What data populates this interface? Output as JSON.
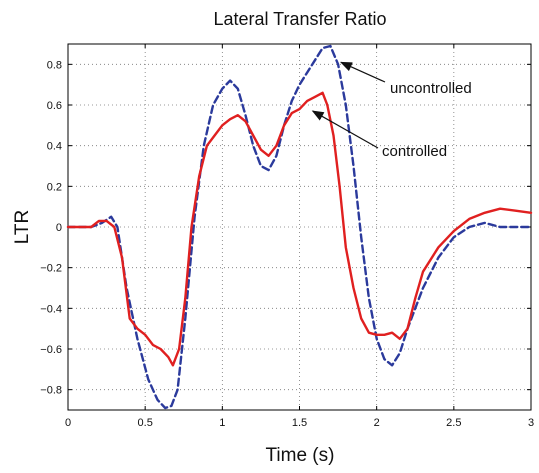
{
  "chart_data": {
    "type": "line",
    "title": "Lateral Transfer Ratio",
    "xlabel": "Time (s)",
    "ylabel": "LTR",
    "xlim": [
      0,
      3
    ],
    "ylim": [
      -0.9,
      0.9
    ],
    "grid": true,
    "x_ticks": [
      0,
      0.5,
      1,
      1.5,
      2,
      2.5,
      3
    ],
    "x_tick_labels": [
      "0",
      "0.5",
      "1",
      "1.5",
      "2",
      "2.5",
      "3"
    ],
    "y_ticks": [
      0.8,
      0.6,
      0.4,
      0.2,
      0,
      -0.2,
      -0.4,
      -0.6,
      -0.8
    ],
    "y_tick_labels": [
      "0.8",
      "0.6",
      "0.4",
      "0.2",
      "0",
      "−0.2",
      "−0.4",
      "−0.6",
      "−0.8"
    ],
    "series": [
      {
        "name": "uncontrolled",
        "color": "#2b3a9c",
        "style": "dashed",
        "x": [
          0,
          0.15,
          0.22,
          0.28,
          0.32,
          0.38,
          0.45,
          0.52,
          0.58,
          0.63,
          0.67,
          0.71,
          0.76,
          0.82,
          0.88,
          0.94,
          1.0,
          1.05,
          1.1,
          1.15,
          1.2,
          1.25,
          1.3,
          1.35,
          1.4,
          1.45,
          1.5,
          1.55,
          1.6,
          1.65,
          1.7,
          1.75,
          1.8,
          1.85,
          1.9,
          1.95,
          2.0,
          2.05,
          2.1,
          2.15,
          2.2,
          2.3,
          2.4,
          2.5,
          2.6,
          2.7,
          2.8,
          2.9,
          3.0
        ],
        "y": [
          0,
          0.0,
          0.02,
          0.05,
          0.0,
          -0.3,
          -0.55,
          -0.75,
          -0.85,
          -0.89,
          -0.88,
          -0.8,
          -0.45,
          0.05,
          0.4,
          0.6,
          0.68,
          0.72,
          0.68,
          0.55,
          0.4,
          0.3,
          0.28,
          0.35,
          0.5,
          0.62,
          0.7,
          0.76,
          0.82,
          0.88,
          0.89,
          0.8,
          0.6,
          0.3,
          -0.05,
          -0.35,
          -0.55,
          -0.65,
          -0.68,
          -0.62,
          -0.5,
          -0.3,
          -0.15,
          -0.05,
          0.0,
          0.02,
          0.0,
          0.0,
          0.0
        ]
      },
      {
        "name": "controlled",
        "color": "#e02020",
        "style": "solid",
        "x": [
          0,
          0.15,
          0.2,
          0.25,
          0.3,
          0.35,
          0.4,
          0.45,
          0.5,
          0.55,
          0.6,
          0.65,
          0.68,
          0.72,
          0.76,
          0.8,
          0.85,
          0.9,
          0.95,
          1.0,
          1.05,
          1.1,
          1.15,
          1.2,
          1.25,
          1.3,
          1.35,
          1.4,
          1.45,
          1.5,
          1.55,
          1.6,
          1.65,
          1.68,
          1.72,
          1.76,
          1.8,
          1.85,
          1.9,
          1.95,
          2.0,
          2.05,
          2.1,
          2.15,
          2.2,
          2.25,
          2.3,
          2.4,
          2.5,
          2.6,
          2.7,
          2.8,
          2.9,
          3.0
        ],
        "y": [
          0,
          0.0,
          0.03,
          0.03,
          0.0,
          -0.15,
          -0.45,
          -0.5,
          -0.53,
          -0.58,
          -0.6,
          -0.64,
          -0.68,
          -0.6,
          -0.35,
          0.0,
          0.25,
          0.4,
          0.45,
          0.5,
          0.53,
          0.55,
          0.52,
          0.45,
          0.38,
          0.35,
          0.4,
          0.5,
          0.56,
          0.58,
          0.62,
          0.64,
          0.66,
          0.6,
          0.45,
          0.2,
          -0.1,
          -0.3,
          -0.45,
          -0.52,
          -0.53,
          -0.53,
          -0.52,
          -0.55,
          -0.5,
          -0.35,
          -0.22,
          -0.1,
          -0.02,
          0.04,
          0.07,
          0.09,
          0.08,
          0.07
        ]
      }
    ],
    "annotations": [
      {
        "text": "uncontrolled",
        "target_x": 1.75,
        "target_y": 0.8
      },
      {
        "text": "controlled",
        "target_x": 1.56,
        "target_y": 0.58
      }
    ]
  }
}
